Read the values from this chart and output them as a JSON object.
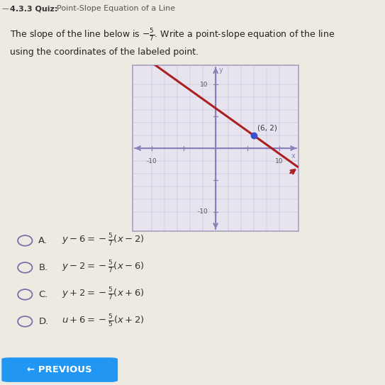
{
  "bg_color": "#edeae2",
  "title_bar_color": "#dddae8",
  "title_bold": "4.3.3 Quiz:",
  "title_rest": "  Point-Slope Equation of a Line",
  "question_line1": "The slope of the line below is $-\\frac{5}{7}$. Write a point-slope equation of the line",
  "question_line2": "using the coordinates of the labeled point.",
  "graph_bg": "#e8e4ef",
  "graph_border": "#a8a0c0",
  "axis_color": "#8880b8",
  "line_color": "#aa2020",
  "point_color": "#3850cc",
  "point_x": 6,
  "point_y": 2,
  "slope_num": -5,
  "slope_den": 7,
  "xlim": [
    -13,
    13
  ],
  "ylim": [
    -13,
    13
  ],
  "choices": [
    [
      "A.",
      "$y - 6 = -\\frac{5}{7}(x - 2)$"
    ],
    [
      "B.",
      "$y - 2 = -\\frac{5}{7}(x - 6)$"
    ],
    [
      "C.",
      "$y + 2 = -\\frac{5}{7}(x + 6)$"
    ],
    [
      "D.",
      "$u + 6 = -\\frac{5}{5}(x + 2)$"
    ]
  ],
  "prev_button_color": "#2196F3",
  "prev_button_text": "← PREVIOUS",
  "circle_color": "#7a70aa"
}
